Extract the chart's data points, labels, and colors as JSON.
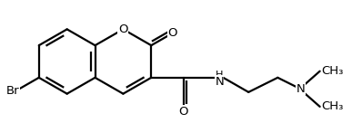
{
  "lw": 1.6,
  "color": "#000000",
  "font_size": 9.5,
  "small_font": 9.5,
  "s": 0.38,
  "xlim": [
    -0.05,
    1.05
  ],
  "ylim": [
    -0.05,
    1.05
  ]
}
